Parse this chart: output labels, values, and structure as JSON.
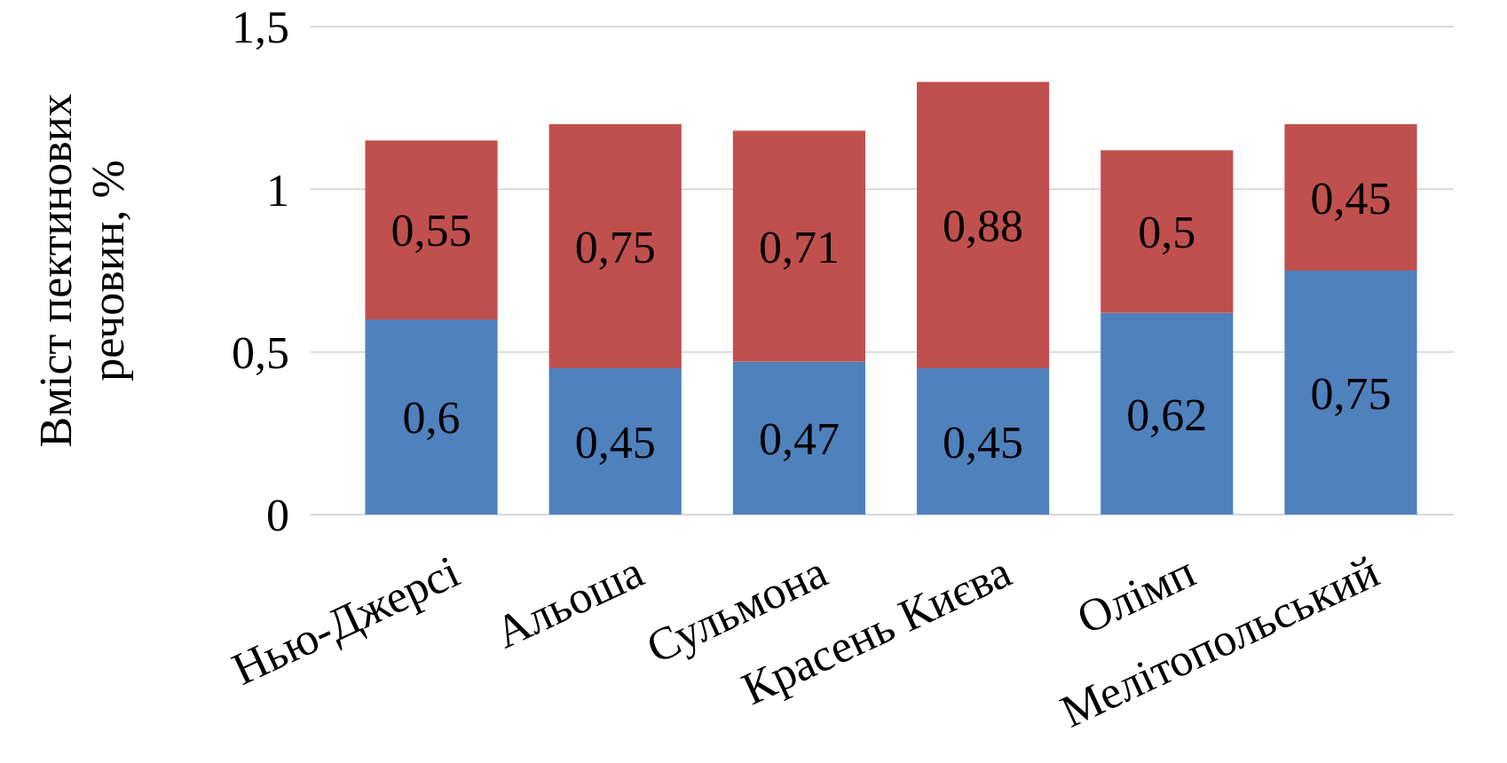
{
  "chart_data": {
    "type": "bar",
    "stacked": true,
    "ylabel": "Вміст пектинових речовин, %",
    "categories": [
      "Нью-Джерсі",
      "Альоша",
      "Сульмона",
      "Красень Києва",
      "Олімп",
      "Мелітопольський"
    ],
    "series": [
      {
        "color": "#4f81bd",
        "values": [
          0.6,
          0.45,
          0.47,
          0.45,
          0.62,
          0.75
        ],
        "value_labels": [
          "0,6",
          "0,45",
          "0,47",
          "0,45",
          "0,62",
          "0,75"
        ]
      },
      {
        "color": "#c0504d",
        "values": [
          0.55,
          0.75,
          0.71,
          0.88,
          0.5,
          0.45
        ],
        "value_labels": [
          "0,55",
          "0,75",
          "0,71",
          "0,88",
          "0,5",
          "0,45"
        ]
      }
    ],
    "ylim": [
      0,
      1.5
    ],
    "yticks": [
      0,
      {
        "value": 0.5,
        "label": "0,5"
      },
      1,
      {
        "value": 1.5,
        "label": "1,5"
      }
    ],
    "grid": "y"
  }
}
